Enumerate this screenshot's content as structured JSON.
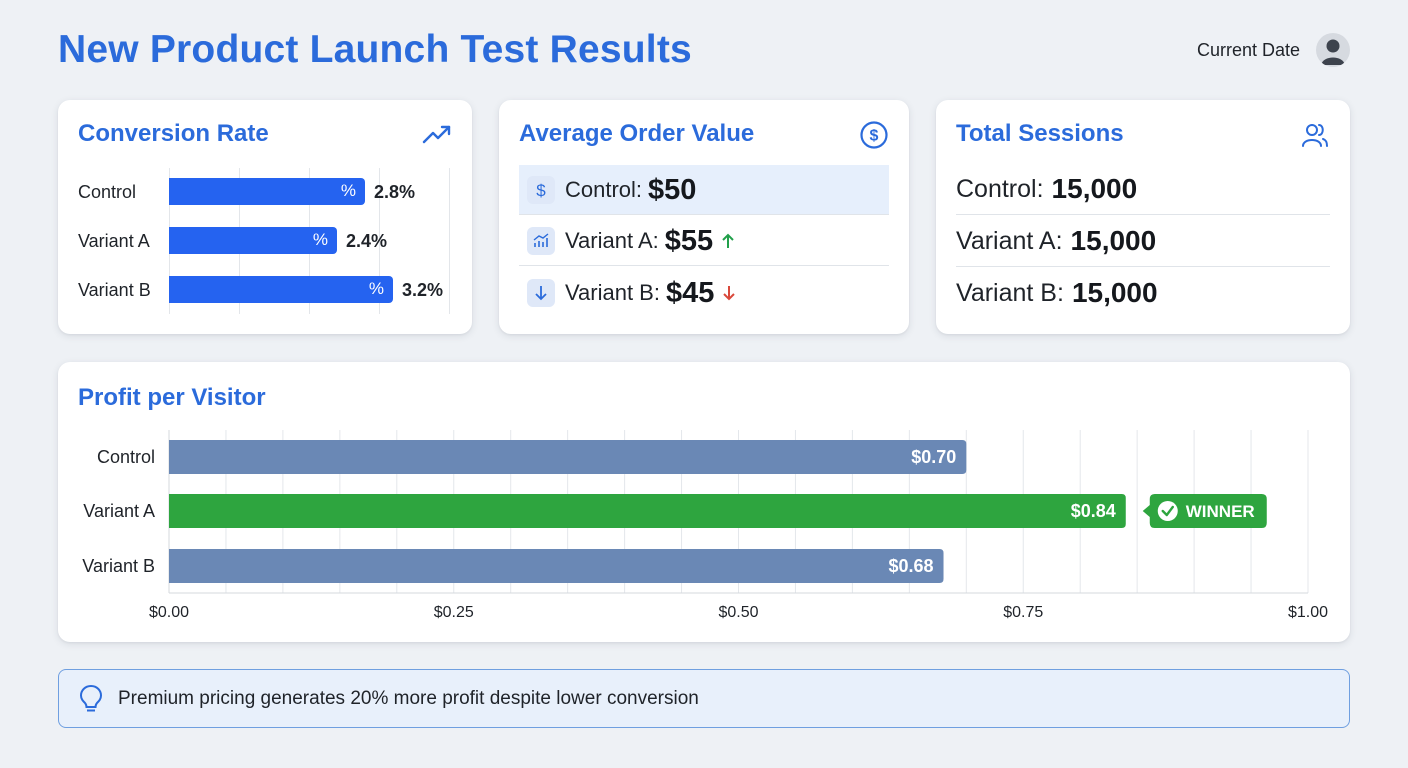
{
  "header": {
    "title": "New Product Launch Test Results",
    "current_date_label": "Current Date"
  },
  "conversion": {
    "title": "Conversion Rate",
    "icon": "trending-up-icon",
    "pct_symbol": "%",
    "rows": [
      {
        "label": "Control",
        "value_text": "2.8%",
        "value": 2.8
      },
      {
        "label": "Variant A",
        "value_text": "2.4%",
        "value": 2.4
      },
      {
        "label": "Variant B",
        "value_text": "3.2%",
        "value": 3.2
      }
    ]
  },
  "aov": {
    "title": "Average Order Value",
    "icon": "dollar-circle-icon",
    "rows": [
      {
        "label": "Control:",
        "value": "$50",
        "trend": "none",
        "icon": "dollar-icon",
        "highlight": true
      },
      {
        "label": "Variant A:",
        "value": "$55",
        "trend": "up",
        "icon": "chart-up-icon",
        "highlight": false
      },
      {
        "label": "Variant B:",
        "value": "$45",
        "trend": "down",
        "icon": "arrow-down-icon",
        "highlight": false
      }
    ]
  },
  "sessions": {
    "title": "Total Sessions",
    "icon": "users-icon",
    "rows": [
      {
        "label": "Control:",
        "value": "15,000"
      },
      {
        "label": "Variant A:",
        "value": "15,000"
      },
      {
        "label": "Variant B:",
        "value": "15,000"
      }
    ]
  },
  "profit": {
    "title": "Profit per Visitor",
    "winner_label": "WINNER"
  },
  "chart_data": {
    "type": "bar",
    "orientation": "horizontal",
    "title": "Profit per Visitor",
    "categories": [
      "Control",
      "Variant A",
      "Variant B"
    ],
    "values": [
      0.7,
      0.84,
      0.68
    ],
    "value_labels": [
      "$0.70",
      "$0.84",
      "$0.68"
    ],
    "x_ticks": [
      "$0.00",
      "$0.25",
      "$0.50",
      "$0.75",
      "$1.00"
    ],
    "xlim": [
      0,
      1.0
    ],
    "grid": true,
    "winner": "Variant A",
    "colors": {
      "default": "#6a88b5",
      "winner": "#2ea53f"
    }
  },
  "insight": {
    "icon": "lightbulb-icon",
    "text": "Premium pricing generates 20% more profit despite lower conversion"
  }
}
